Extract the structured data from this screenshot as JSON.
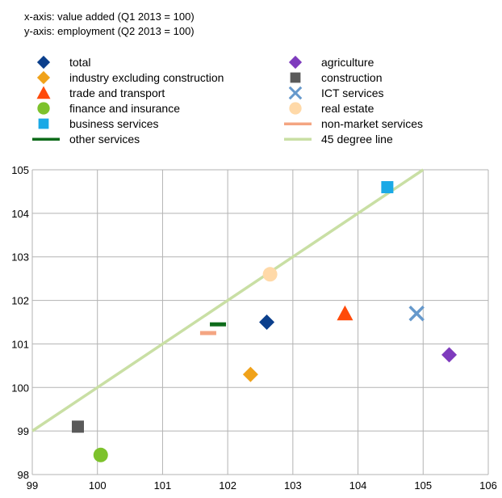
{
  "notes": {
    "x": "x-axis: value added (Q1 2013 = 100)",
    "y": "y-axis: employment (Q2 2013 = 100)"
  },
  "chart_data": {
    "type": "scatter",
    "title": "",
    "xlabel": "",
    "ylabel": "",
    "xlim": [
      99,
      106
    ],
    "ylim": [
      98,
      105
    ],
    "x_ticks": [
      99,
      100,
      101,
      102,
      103,
      104,
      105,
      106
    ],
    "y_ticks": [
      98,
      99,
      100,
      101,
      102,
      103,
      104,
      105
    ],
    "grid": true,
    "legend_position": "top",
    "series": [
      {
        "name": "total",
        "marker": "diamond",
        "color": "#0b3f8c",
        "x": 102.6,
        "y": 101.5
      },
      {
        "name": "agriculture",
        "marker": "diamond",
        "color": "#7e3bbd",
        "x": 105.4,
        "y": 100.75
      },
      {
        "name": "industry excluding construction",
        "marker": "diamond",
        "color": "#f0a21a",
        "x": 102.35,
        "y": 100.3
      },
      {
        "name": "construction",
        "marker": "square",
        "color": "#5a5a5a",
        "x": 99.7,
        "y": 99.1
      },
      {
        "name": "trade and transport",
        "marker": "triangle",
        "color": "#ff4a0a",
        "x": 103.8,
        "y": 101.7
      },
      {
        "name": "ICT services",
        "marker": "cross",
        "color": "#6699cc",
        "x": 104.9,
        "y": 101.7
      },
      {
        "name": "finance and insurance",
        "marker": "circle",
        "color": "#7dc22c",
        "x": 100.05,
        "y": 98.45
      },
      {
        "name": "real estate",
        "marker": "circle",
        "color": "#ffd9a8",
        "x": 102.65,
        "y": 102.6
      },
      {
        "name": "business services",
        "marker": "square",
        "color": "#1aa9e6",
        "x": 104.45,
        "y": 104.6
      },
      {
        "name": "non-market services",
        "marker": "dash",
        "color": "#f4a582",
        "x": 101.7,
        "y": 101.25
      },
      {
        "name": "other services",
        "marker": "dash",
        "color": "#0e6b1a",
        "x": 101.85,
        "y": 101.45
      },
      {
        "name": "45 degree line",
        "marker": "line",
        "color": "#c9dfa4",
        "x": [
          99,
          105
        ],
        "y": [
          99,
          105
        ]
      }
    ]
  }
}
